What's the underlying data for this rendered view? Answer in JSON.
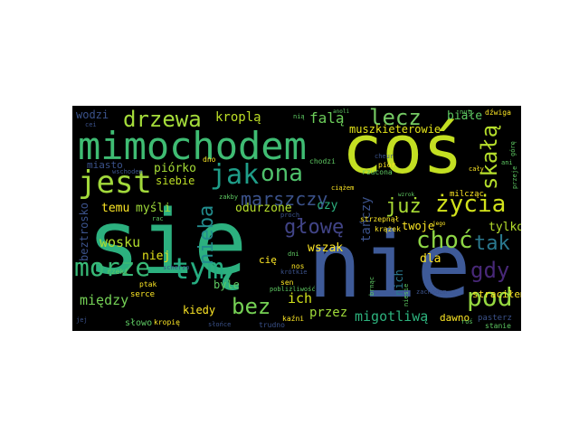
{
  "words": {
    "sie": "się",
    "nie": "nie",
    "cos": "coś",
    "mimochodem": "mimochodem",
    "jest": "jest",
    "drzewa": "drzewa",
    "jak": "jak",
    "ona": "ona",
    "lecz": "lecz",
    "skala": "skałą",
    "zycia": "życia",
    "juz": "już",
    "morze": "morze",
    "tym": "tym",
    "glowe": "głowę",
    "bez": "bez",
    "chocc": "choć",
    "tak": "tak",
    "pod": "pod",
    "gdy": "gdy",
    "marszczy": "marszczy",
    "nieba": "nieba",
    "kropla": "kroplą",
    "fala": "falą",
    "wodzi": "wodzi",
    "muszkieterowie": "muszkieterowie",
    "biale": "białe",
    "piorko": "piórko",
    "siebie": "siebie",
    "miasto": "miasto",
    "temu": "temu",
    "mysli": "myśli",
    "wosku": "wosku",
    "niej": "niej",
    "miedzy": "między",
    "odurzone": "odurzone",
    "tanczy": "tańczy",
    "czy": "czy",
    "twoje": "twoje",
    "tylko": "tylko",
    "wszak": "wszak",
    "ich": "ich",
    "dla": "dla",
    "przez": "przez",
    "migotliwa": "migotliwą",
    "kiedy": "kiedy",
    "beztrosko": "beztrosko",
    "byle": "byle",
    "cie": "cię",
    "nich": "nich",
    "stracilem": "straciłem",
    "dawno": "dawno",
    "milczac": "milcząc",
    "serce": "serce",
    "slowo": "słowo",
    "kropie": "kropię",
    "pasterz": "pasterz",
    "stanie": "stanie",
    "caly": "cały",
    "dzwiga": "dźwiga",
    "chodzi": "chodzi",
    "rzucona": "rzucona",
    "dno": "dno",
    "piór": "piór",
    "krazek": "krążek",
    "strzepnal": "strzepnął",
    "wschodem": "wschodem",
    "rzeki": "rzeki",
    "ptak": "ptak",
    "kazni": "kaźni",
    "trudno": "trudno",
    "slonce": "słońce",
    "jej": "jej",
    "sen": "sen",
    "nos": "nos",
    "dni": "dni",
    "ros": "roś",
    "gore": "górę",
    "zachodem": "zachodem",
    "nut": "nut",
    "cheur": "cheur",
    "przeje": "przeje",
    "pobliz": "pobliżliwość",
    "ciazem": "ciążem",
    "niesie": "niesie",
    "jego": "jego",
    "krotkie": "krótkie",
    "zakby": "zakby",
    "rac": "rac",
    "scherzo": "scherzo",
    "nia": "nią",
    "wzrok": "wzrok",
    "cei": "cei",
    "anoli": "anoli",
    "proch": "proch",
    "brnac": "brnąc",
    "ani": "ani"
  }
}
